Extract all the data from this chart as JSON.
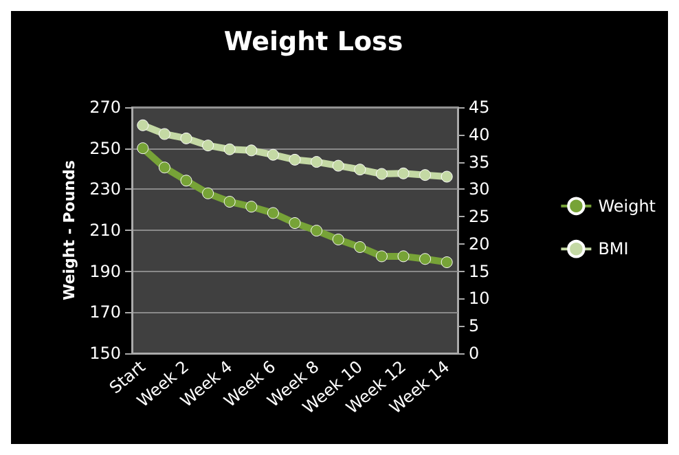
{
  "chart_data": {
    "type": "line",
    "title": "Weight Loss",
    "ylabel": "Weight - Pounds",
    "categories": [
      "Start",
      null,
      "Week 2",
      null,
      "Week 4",
      null,
      "Week 6",
      null,
      "Week 8",
      null,
      "Week 10",
      null,
      "Week 12",
      null,
      "Week 14"
    ],
    "series": [
      {
        "name": "Weight",
        "color": "#77a337",
        "values": [
          250,
          240.6,
          234.2,
          228,
          223.9,
          221.5,
          218.4,
          213.5,
          209.8,
          205.5,
          201.8,
          197.3,
          197.3,
          196,
          194.4
        ]
      },
      {
        "name": "BMI",
        "color": "#c4d9a4",
        "axis": "y2",
        "values": [
          41.7,
          40.1,
          39.3,
          38.0,
          37.3,
          37.1,
          36.3,
          35.4,
          35.0,
          34.3,
          33.6,
          32.8,
          32.9,
          32.6,
          32.3
        ]
      }
    ],
    "ylim": [
      150,
      270
    ],
    "yticks": [
      150,
      170,
      190,
      210,
      230,
      250,
      270
    ],
    "y2lim": [
      0,
      45
    ],
    "y2ticks": [
      0,
      5,
      10,
      15,
      20,
      25,
      30,
      35,
      40,
      45
    ],
    "grid": "y",
    "legend": "right",
    "marker": "circle",
    "line_style": "solid"
  }
}
